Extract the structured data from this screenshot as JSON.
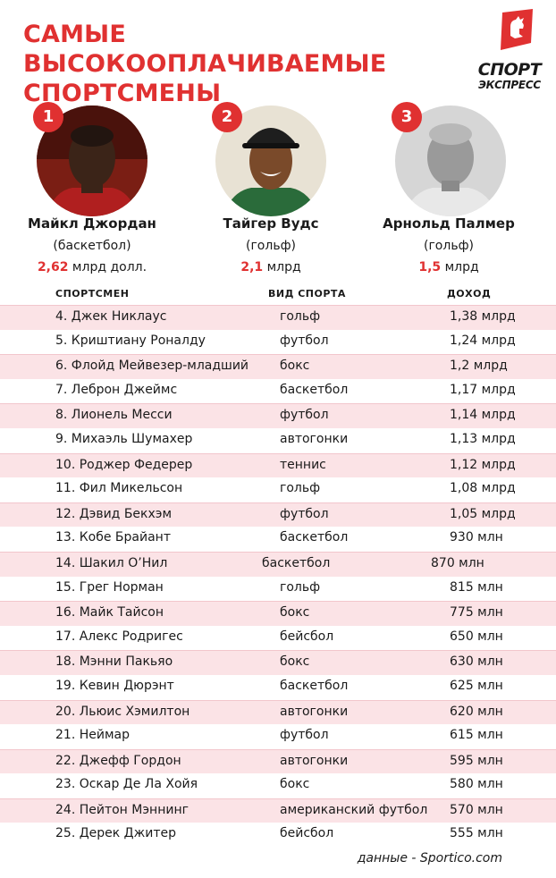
{
  "header": {
    "title": "САМЫЕ ВЫСОКООПЛАЧИВАЕМЫЕ СПОРТСМЕНЫ",
    "logo_text": "СПОРТ",
    "logo_sub": "ЭКСПРЕСС"
  },
  "top3": [
    {
      "rank": "1",
      "name": "Майкл Джордан",
      "sport": "(баскетбол)",
      "income_value": "2,62",
      "income_unit": " млрд долл."
    },
    {
      "rank": "2",
      "name": "Тайгер Вудс",
      "sport": "(гольф)",
      "income_value": "2,1",
      "income_unit": " млрд"
    },
    {
      "rank": "3",
      "name": "Арнольд Палмер",
      "sport": "(гольф)",
      "income_value": "1,5",
      "income_unit": " млрд"
    }
  ],
  "table": {
    "columns": [
      "СПОРТСМЕН",
      "ВИД СПОРТА",
      "ДОХОД"
    ],
    "rows": [
      {
        "name": "4. Джек Никлаус",
        "sport": "гольф",
        "income": "1,38 млрд"
      },
      {
        "name": "5. Криштиану Роналду",
        "sport": "футбол",
        "income": "1,24 млрд"
      },
      {
        "name": "6. Флойд Мейвезер-младший",
        "sport": "бокс",
        "income": "1,2 млрд"
      },
      {
        "name": "7. Леброн Джеймс",
        "sport": "баскетбол",
        "income": "1,17 млрд"
      },
      {
        "name": "8. Лионель Месси",
        "sport": "футбол",
        "income": "1,14 млрд"
      },
      {
        "name": "9. Михаэль Шумахер",
        "sport": "автогонки",
        "income": "1,13 млрд"
      },
      {
        "name": "10. Роджер Федерер",
        "sport": "теннис",
        "income": "1,12 млрд"
      },
      {
        "name": "11. Фил Микельсон",
        "sport": "гольф",
        "income": "1,08 млрд"
      },
      {
        "name": "12. Дэвид Бекхэм",
        "sport": "футбол",
        "income": "1,05 млрд"
      },
      {
        "name": "13. Кобе Брайант",
        "sport": "баскетбол",
        "income": "930 млн"
      },
      {
        "name": "14. Шакил О’Нил",
        "sport": "баскетбол",
        "income": "870 млн"
      },
      {
        "name": "15. Грег Норман",
        "sport": "гольф",
        "income": "815 млн"
      },
      {
        "name": "16. Майк Тайсон",
        "sport": "бокс",
        "income": "775 млн"
      },
      {
        "name": "17. Алекс Родригес",
        "sport": "бейсбол",
        "income": "650 млн"
      },
      {
        "name": "18. Мэнни Пакьяо",
        "sport": "бокс",
        "income": "630 млн"
      },
      {
        "name": "19. Кевин Дюрэнт",
        "sport": "баскетбол",
        "income": "625 млн"
      },
      {
        "name": "20. Льюис Хэмилтон",
        "sport": "автогонки",
        "income": "620 млн"
      },
      {
        "name": "21. Неймар",
        "sport": "футбол",
        "income": "615 млн"
      },
      {
        "name": "22. Джефф Гордон",
        "sport": "автогонки",
        "income": "595 млн"
      },
      {
        "name": "23. Оскар Де Ла Хойя",
        "sport": "бокс",
        "income": "580 млн"
      },
      {
        "name": "24. Пейтон Мэннинг",
        "sport": "американский футбол",
        "income": "570 млн"
      },
      {
        "name": "25. Дерек Джитер",
        "sport": "бейсбол",
        "income": "555 млн"
      }
    ]
  },
  "source": "данные - Sportico.com",
  "colors": {
    "accent": "#e03131",
    "row_stripe": "#fbe3e6",
    "text": "#1a1a1a"
  }
}
